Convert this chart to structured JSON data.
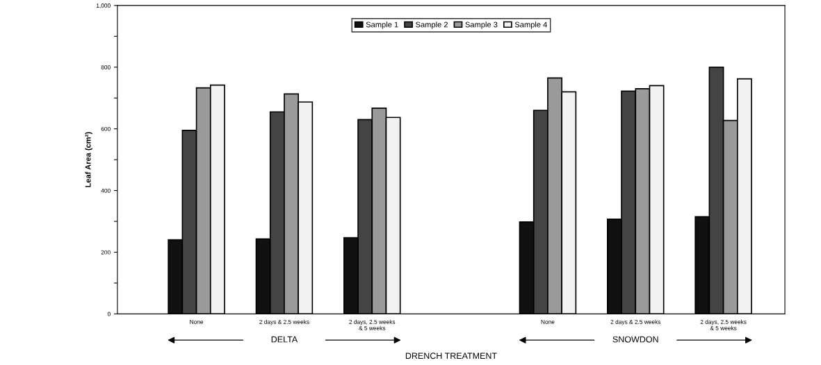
{
  "chart_data": {
    "type": "bar",
    "categories": [
      "None",
      "2 days & 2.5 weeks",
      "2 days, 2.5 weeks\n& 5 weeks",
      null,
      "None",
      "2 days & 2.5 weeks",
      "2 days, 2.5 weeks\n& 5 weeks"
    ],
    "series": [
      {
        "name": "Sample 1",
        "color": "#111111",
        "values": [
          240,
          243,
          247,
          null,
          298,
          307,
          315
        ]
      },
      {
        "name": "Sample 2",
        "color": "#444444",
        "values": [
          595,
          655,
          630,
          null,
          660,
          722,
          800
        ]
      },
      {
        "name": "Sample 3",
        "color": "#9a9a9a",
        "values": [
          733,
          713,
          667,
          null,
          765,
          730,
          627
        ]
      },
      {
        "name": "Sample 4",
        "color": "#f2f2f2",
        "values": [
          742,
          687,
          637,
          null,
          720,
          740,
          762
        ]
      }
    ],
    "ylabel": "Leaf Area (cm²)",
    "xlabel": "DRENCH TREATMENT",
    "ylim": [
      0,
      1000
    ],
    "yticks": [
      0,
      {
        "value": 100,
        "label": null
      },
      200,
      {
        "value": 300,
        "label": null
      },
      400,
      {
        "value": 500,
        "label": null
      },
      600,
      {
        "value": 700,
        "label": null
      },
      800,
      {
        "value": 900,
        "label": null
      },
      {
        "value": 1000,
        "label": "1,000"
      }
    ],
    "annotations": [
      "DELTA",
      "SNOWDON"
    ],
    "legend": "top",
    "grid": false
  }
}
